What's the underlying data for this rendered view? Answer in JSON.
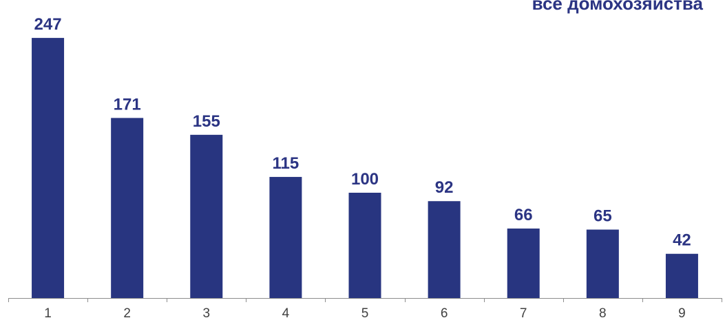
{
  "chart_data": {
    "type": "bar",
    "title": "все домохозяйства",
    "categories": [
      "1",
      "2",
      "3",
      "4",
      "5",
      "6",
      "7",
      "8",
      "9"
    ],
    "values": [
      247,
      171,
      155,
      115,
      100,
      92,
      66,
      65,
      42
    ],
    "ylim": [
      0,
      275
    ],
    "xlabel": "",
    "ylabel": "",
    "grid": false,
    "legend": "none",
    "colors": {
      "bar": "#283580",
      "value_label": "#2b3483",
      "axis": "#8c8c8c",
      "tick_label": "#404040"
    }
  }
}
